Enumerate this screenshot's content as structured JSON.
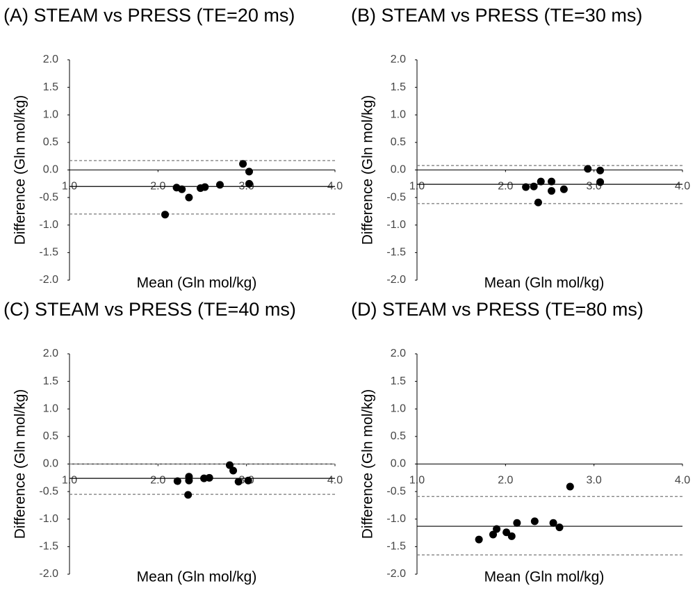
{
  "chart_data": [
    {
      "type": "scatter",
      "title": "(A) STEAM vs PRESS (TE=20 ms)",
      "x_label": "Mean (Gln mol/kg)",
      "y_label": "Difference (Gln mol/kg)",
      "xlim": [
        1.0,
        4.0
      ],
      "ylim": [
        -2.0,
        2.0
      ],
      "xticks": [
        {
          "value": 1,
          "label": "1.0"
        },
        {
          "value": 2,
          "label": "2.0"
        },
        {
          "value": 3,
          "label": "3.0"
        },
        {
          "value": 4,
          "label": "4.0"
        }
      ],
      "yticks": [
        {
          "value": 2,
          "label": "2.0"
        },
        {
          "value": 1.5,
          "label": "1.5"
        },
        {
          "value": 1,
          "label": "1.0"
        },
        {
          "value": 0.5,
          "label": "0.5"
        },
        {
          "value": 0,
          "label": "0.0"
        },
        {
          "value": -0.5,
          "label": "-0.5"
        },
        {
          "value": -1,
          "label": "-1.0"
        },
        {
          "value": -1.5,
          "label": "-1.5"
        },
        {
          "value": -2,
          "label": "-2.0"
        }
      ],
      "color": "#000000",
      "mean": -0.3,
      "limits": [
        0.17,
        -0.8
      ],
      "x": [
        2.08,
        2.21,
        2.27,
        2.35,
        2.48,
        2.53,
        2.7,
        2.96,
        3.03,
        3.03
      ],
      "values": [
        -0.81,
        -0.32,
        -0.35,
        -0.5,
        -0.33,
        -0.31,
        -0.27,
        0.11,
        -0.03,
        -0.25
      ]
    },
    {
      "type": "scatter",
      "title": "(B) STEAM vs PRESS (TE=30 ms)",
      "x_label": "Mean (Gln mol/kg)",
      "y_label": "Difference (Gln mol/kg)",
      "xlim": [
        1.0,
        4.0
      ],
      "ylim": [
        -2.0,
        2.0
      ],
      "xticks": [
        {
          "value": 1,
          "label": "1.0"
        },
        {
          "value": 2,
          "label": "2.0"
        },
        {
          "value": 3,
          "label": "3.0"
        },
        {
          "value": 4,
          "label": "4.0"
        }
      ],
      "yticks": [
        {
          "value": 2,
          "label": "2.0"
        },
        {
          "value": 1.5,
          "label": "1.5"
        },
        {
          "value": 1,
          "label": "1.0"
        },
        {
          "value": 0.5,
          "label": "0.5"
        },
        {
          "value": 0,
          "label": "0.0"
        },
        {
          "value": -0.5,
          "label": "-0.5"
        },
        {
          "value": -1,
          "label": "-1.0"
        },
        {
          "value": -1.5,
          "label": "-1.5"
        },
        {
          "value": -2,
          "label": "-2.0"
        }
      ],
      "color": "#000000",
      "mean": -0.26,
      "limits": [
        0.08,
        -0.61
      ],
      "x": [
        2.23,
        2.32,
        2.4,
        2.37,
        2.52,
        2.52,
        2.66,
        2.93,
        3.07,
        3.07
      ],
      "values": [
        -0.31,
        -0.3,
        -0.21,
        -0.59,
        -0.21,
        -0.38,
        -0.35,
        0.02,
        -0.01,
        -0.22
      ]
    },
    {
      "type": "scatter",
      "title": "(C) STEAM vs PRESS (TE=40 ms)",
      "x_label": "Mean (Gln mol/kg)",
      "y_label": "Difference (Gln mol/kg)",
      "xlim": [
        1.0,
        4.0
      ],
      "ylim": [
        -2.0,
        2.0
      ],
      "xticks": [
        {
          "value": 1,
          "label": "1.0"
        },
        {
          "value": 2,
          "label": "2.0"
        },
        {
          "value": 3,
          "label": "3.0"
        },
        {
          "value": 4,
          "label": "4.0"
        }
      ],
      "yticks": [
        {
          "value": 2,
          "label": "2.0"
        },
        {
          "value": 1.5,
          "label": "1.5"
        },
        {
          "value": 1,
          "label": "1.0"
        },
        {
          "value": 0.5,
          "label": "0.5"
        },
        {
          "value": 0,
          "label": "0.0"
        },
        {
          "value": -0.5,
          "label": "-0.5"
        },
        {
          "value": -1,
          "label": "-1.0"
        },
        {
          "value": -1.5,
          "label": "-1.5"
        },
        {
          "value": -2,
          "label": "-2.0"
        }
      ],
      "color": "#000000",
      "mean": -0.26,
      "limits": [
        0.0,
        -0.55
      ],
      "x": [
        2.22,
        2.35,
        2.35,
        2.34,
        2.52,
        2.58,
        2.81,
        2.85,
        2.91,
        3.02
      ],
      "values": [
        -0.31,
        -0.23,
        -0.3,
        -0.56,
        -0.26,
        -0.25,
        -0.02,
        -0.12,
        -0.32,
        -0.3
      ]
    },
    {
      "type": "scatter",
      "title": "(D) STEAM vs PRESS (TE=80 ms)",
      "x_label": "Mean (Gln mol/kg)",
      "y_label": "Difference (Gln mol/kg)",
      "xlim": [
        1.0,
        4.0
      ],
      "ylim": [
        -2.0,
        2.0
      ],
      "xticks": [
        {
          "value": 1,
          "label": "1.0"
        },
        {
          "value": 2,
          "label": "2.0"
        },
        {
          "value": 3,
          "label": "3.0"
        },
        {
          "value": 4,
          "label": "4.0"
        }
      ],
      "yticks": [
        {
          "value": 2,
          "label": "2.0"
        },
        {
          "value": 1.5,
          "label": "1.5"
        },
        {
          "value": 1,
          "label": "1.0"
        },
        {
          "value": 0.5,
          "label": "0.5"
        },
        {
          "value": 0,
          "label": "0.0"
        },
        {
          "value": -0.5,
          "label": "-0.5"
        },
        {
          "value": -1,
          "label": "-1.0"
        },
        {
          "value": -1.5,
          "label": "-1.5"
        },
        {
          "value": -2,
          "label": "-2.0"
        }
      ],
      "color": "#000000",
      "mean": -1.13,
      "limits": [
        -0.59,
        -1.65
      ],
      "x": [
        1.7,
        1.86,
        1.9,
        2.01,
        2.07,
        2.13,
        2.33,
        2.54,
        2.61,
        2.73
      ],
      "values": [
        -1.37,
        -1.28,
        -1.18,
        -1.24,
        -1.31,
        -1.07,
        -1.04,
        -1.07,
        -1.15,
        -0.41
      ]
    }
  ]
}
